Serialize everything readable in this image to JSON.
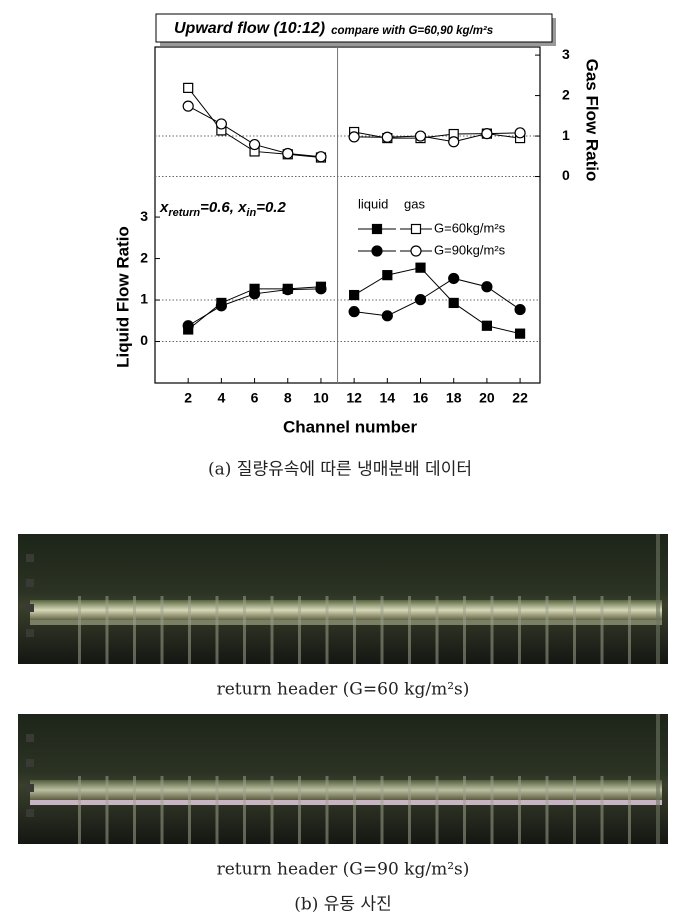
{
  "chart_data": {
    "type": "line",
    "title": "Upward flow (10:12)",
    "subtitle": "compare with G=60,90 kg/m²s",
    "x_label": "Channel number",
    "y_label": "Liquid Flow Ratio",
    "y2_label": "Gas Flow Ratio",
    "annotation": [
      "x",
      "return",
      "=0.6, x",
      "in",
      "=0.2"
    ],
    "legend_headers": [
      "liquid",
      "gas"
    ],
    "x": [
      2,
      4,
      6,
      8,
      10,
      12,
      14,
      16,
      18,
      20,
      22
    ],
    "xlim": [
      0,
      23.2
    ],
    "xticks": [
      2,
      4,
      6,
      8,
      10,
      12,
      14,
      16,
      18,
      20,
      22
    ],
    "divider": 11,
    "ylim": [
      -1,
      7.1
    ],
    "yticks": [
      0,
      1,
      2,
      3
    ],
    "y2lim": [
      -5.1,
      3.2
    ],
    "y2ticks": [
      0,
      1,
      2,
      3
    ],
    "hlines": [
      0,
      1
    ],
    "y2hlines": [
      0,
      1
    ],
    "series": [
      {
        "name": "G=60kg/m²s",
        "marker": "square",
        "color": "#000000",
        "liquid": [
          0.29,
          0.93,
          1.27,
          1.27,
          1.32,
          1.12,
          1.6,
          1.78,
          0.93,
          0.38,
          0.19
        ],
        "gas": [
          2.19,
          1.14,
          0.62,
          0.55,
          0.47,
          1.1,
          0.95,
          0.95,
          1.05,
          1.06,
          0.95
        ]
      },
      {
        "name": "G=90kg/m²s",
        "marker": "circle",
        "color": "#000000",
        "liquid": [
          0.38,
          0.86,
          1.15,
          1.25,
          1.27,
          0.72,
          0.62,
          1.01,
          1.52,
          1.32,
          0.77
        ],
        "gas": [
          1.74,
          1.3,
          0.79,
          0.57,
          0.49,
          0.98,
          0.97,
          1.0,
          0.86,
          1.06,
          1.08
        ]
      }
    ]
  },
  "caption_a": "(a) 질량유속에 따른 냉매분배 데이터",
  "photos": [
    {
      "caption": "return header (G=60 kg/m²s)"
    },
    {
      "caption": "return header (G=90 kg/m²s)"
    }
  ],
  "caption_b": "(b) 유동 사진"
}
